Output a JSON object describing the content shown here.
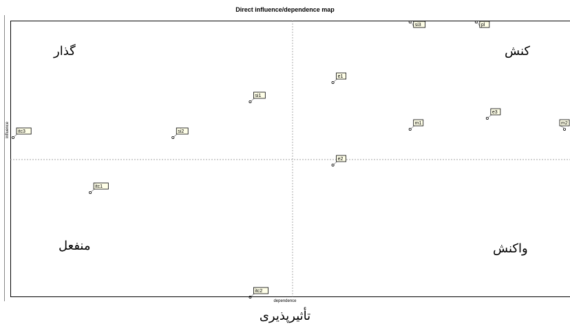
{
  "chart_data": {
    "type": "scatter",
    "title": "Direct influence/dependence map",
    "xlabel": "dependence",
    "ylabel": "influence",
    "grid": false,
    "quadrant_labels": {
      "top_left": "گذار",
      "top_right": "کنش",
      "bottom_left": "منفعل",
      "bottom_right": "واکنش"
    },
    "caption": "تأثیرپذیری",
    "points": [
      {
        "label": "si3",
        "x": 0.72,
        "y": 1.0
      },
      {
        "label": "pl",
        "x": 0.84,
        "y": 1.0
      },
      {
        "label": "e1",
        "x": 0.58,
        "y": 0.78
      },
      {
        "label": "si1",
        "x": 0.43,
        "y": 0.71
      },
      {
        "label": "itc3",
        "x": 0.0,
        "y": 0.58
      },
      {
        "label": "si2",
        "x": 0.29,
        "y": 0.58
      },
      {
        "label": "m1",
        "x": 0.72,
        "y": 0.61
      },
      {
        "label": "e3",
        "x": 0.86,
        "y": 0.65
      },
      {
        "label": "m2",
        "x": 1.0,
        "y": 0.61
      },
      {
        "label": "e2",
        "x": 0.58,
        "y": 0.48
      },
      {
        "label": "itc1",
        "x": 0.14,
        "y": 0.38
      },
      {
        "label": "itc2",
        "x": 0.43,
        "y": 0.0
      }
    ]
  }
}
